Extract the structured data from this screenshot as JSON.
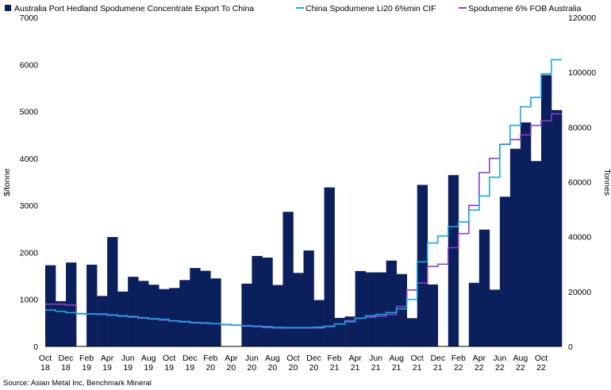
{
  "chart_data": {
    "type": "bar+line",
    "legend": [
      {
        "name": "Australia Port Hedland Spodumene Concentrate Export To China",
        "color": "#0b1f5c",
        "kind": "bar"
      },
      {
        "name": "China Spodumene Li20 6%min CIF",
        "color": "#1aa8e0",
        "kind": "line"
      },
      {
        "name": "Spodumene 6% FOB Australia",
        "color": "#8a3fd0",
        "kind": "line"
      }
    ],
    "ylabel_left": "$/tonne",
    "ylabel_right": "Tonnes",
    "ylim_left": [
      0,
      7000
    ],
    "ylim_right": [
      0,
      120000
    ],
    "yticks_left": [
      "0",
      "1000",
      "2000",
      "3000",
      "4000",
      "5000",
      "6000",
      "7000"
    ],
    "yticks_right": [
      "0",
      "20000",
      "40000",
      "60000",
      "80000",
      "100000",
      "120000"
    ],
    "xtick_labels": [
      [
        "Oct",
        "18"
      ],
      [
        "Dec",
        "18"
      ],
      [
        "Feb",
        "19"
      ],
      [
        "Apr",
        "19"
      ],
      [
        "Jun",
        "19"
      ],
      [
        "Aug",
        "19"
      ],
      [
        "Oct",
        "19"
      ],
      [
        "Dec",
        "19"
      ],
      [
        "Feb",
        "20"
      ],
      [
        "Apr",
        "20"
      ],
      [
        "Jun",
        "20"
      ],
      [
        "Aug",
        "20"
      ],
      [
        "Oct",
        "20"
      ],
      [
        "Dec",
        "20"
      ],
      [
        "Feb",
        "21"
      ],
      [
        "Apr",
        "21"
      ],
      [
        "Jun",
        "21"
      ],
      [
        "Aug",
        "21"
      ],
      [
        "Oct",
        "21"
      ],
      [
        "Dec",
        "21"
      ],
      [
        "Feb",
        "22"
      ],
      [
        "Apr",
        "22"
      ],
      [
        "Jun",
        "22"
      ],
      [
        "Aug",
        "22"
      ],
      [
        "Oct",
        "22"
      ]
    ],
    "months": [
      "Oct-18",
      "Nov-18",
      "Dec-18",
      "Jan-19",
      "Feb-19",
      "Mar-19",
      "Apr-19",
      "May-19",
      "Jun-19",
      "Jul-19",
      "Aug-19",
      "Sep-19",
      "Oct-19",
      "Nov-19",
      "Dec-19",
      "Jan-20",
      "Feb-20",
      "Mar-20",
      "Apr-20",
      "May-20",
      "Jun-20",
      "Jul-20",
      "Aug-20",
      "Sep-20",
      "Oct-20",
      "Nov-20",
      "Dec-20",
      "Jan-21",
      "Feb-21",
      "Mar-21",
      "Apr-21",
      "May-21",
      "Jun-21",
      "Jul-21",
      "Aug-21",
      "Sep-21",
      "Oct-21",
      "Nov-21",
      "Dec-21",
      "Jan-22",
      "Feb-22",
      "Mar-22",
      "Apr-22",
      "May-22",
      "Jun-22",
      "Jul-22",
      "Aug-22",
      "Sep-22",
      "Oct-22",
      "Nov-22"
    ],
    "export_tonnes": [
      29600,
      16500,
      30600,
      0,
      29800,
      18400,
      39900,
      20000,
      25400,
      23900,
      22500,
      20900,
      21300,
      24200,
      28600,
      27600,
      24800,
      0,
      0,
      22900,
      33000,
      32400,
      22400,
      49100,
      26800,
      35000,
      16900,
      58000,
      10400,
      10900,
      27500,
      27000,
      27000,
      31300,
      26400,
      10300,
      58900,
      22600,
      0,
      62500,
      0,
      23200,
      42600,
      20700,
      54600,
      72100,
      81700,
      67600,
      99000,
      86200
    ],
    "cif_usd_t": [
      775,
      745,
      720,
      690,
      690,
      690,
      670,
      650,
      635,
      610,
      590,
      575,
      545,
      530,
      510,
      500,
      485,
      470,
      455,
      440,
      430,
      420,
      405,
      400,
      400,
      400,
      410,
      430,
      475,
      525,
      600,
      650,
      680,
      720,
      800,
      1000,
      1800,
      2200,
      2350,
      2550,
      2650,
      2900,
      3200,
      3600,
      4300,
      4700,
      5100,
      5300,
      5800,
      6100
    ],
    "fob_usd_t": [
      900,
      900,
      880,
      700,
      690,
      680,
      660,
      640,
      620,
      600,
      580,
      560,
      540,
      520,
      500,
      490,
      480,
      460,
      450,
      430,
      420,
      400,
      390,
      390,
      390,
      390,
      390,
      420,
      480,
      550,
      600,
      620,
      640,
      680,
      850,
      1200,
      1350,
      1700,
      1750,
      2100,
      2400,
      3000,
      3700,
      4000,
      4300,
      4400,
      4500,
      4700,
      4800,
      4950
    ]
  },
  "source_text": "Source: Asian Metal Inc, Benchmark Mineral"
}
